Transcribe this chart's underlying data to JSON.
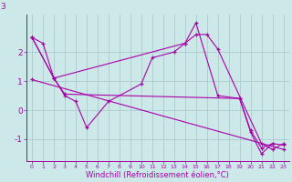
{
  "background_color": "#cce8e8",
  "line_color": "#aa00aa",
  "grid_color": "#aacccc",
  "xlabel": "Windchill (Refroidissement éolien,°C)",
  "xlabel_fontsize": 6.0,
  "yticks": [
    -1,
    0,
    1,
    2
  ],
  "ytop_label": "3",
  "xlim": [
    -0.5,
    23.5
  ],
  "ylim": [
    -1.75,
    3.3
  ],
  "series": [
    {
      "x": [
        0,
        1,
        2,
        14,
        15,
        16,
        17,
        21,
        22,
        23
      ],
      "y": [
        2.5,
        2.3,
        1.1,
        2.3,
        2.6,
        2.6,
        2.1,
        -1.15,
        -1.35,
        -1.15
      ]
    },
    {
      "x": [
        0,
        2,
        3,
        4,
        5,
        7,
        10,
        11,
        13,
        14,
        15,
        17,
        19,
        20,
        21,
        22
      ],
      "y": [
        2.5,
        1.1,
        0.5,
        0.3,
        -0.6,
        0.3,
        0.9,
        1.8,
        2.0,
        2.3,
        3.0,
        0.5,
        0.4,
        -0.75,
        -1.5,
        -1.15
      ]
    },
    {
      "x": [
        0,
        2,
        3,
        19,
        20,
        21,
        22,
        23
      ],
      "y": [
        2.5,
        1.1,
        0.55,
        0.4,
        -0.7,
        -1.3,
        -1.15,
        -1.2
      ]
    },
    {
      "x": [
        0,
        23
      ],
      "y": [
        1.05,
        -1.35
      ]
    }
  ]
}
